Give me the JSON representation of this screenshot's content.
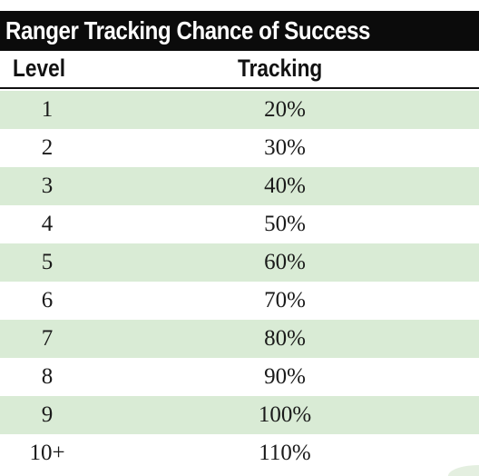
{
  "table": {
    "title": "Ranger Tracking Chance of Success",
    "headers": {
      "level": "Level",
      "tracking": "Tracking"
    },
    "rows": [
      {
        "level": "1",
        "tracking": "20%"
      },
      {
        "level": "2",
        "tracking": "30%"
      },
      {
        "level": "3",
        "tracking": "40%"
      },
      {
        "level": "4",
        "tracking": "50%"
      },
      {
        "level": "5",
        "tracking": "60%"
      },
      {
        "level": "6",
        "tracking": "70%"
      },
      {
        "level": "7",
        "tracking": "80%"
      },
      {
        "level": "8",
        "tracking": "90%"
      },
      {
        "level": "9",
        "tracking": "100%"
      },
      {
        "level": "10+",
        "tracking": "110%"
      }
    ]
  },
  "colors": {
    "title_background": "#0b0b0b",
    "title_text": "#ffffff",
    "shaded_row": "#d9ebd5",
    "text": "#1a1a1a"
  }
}
